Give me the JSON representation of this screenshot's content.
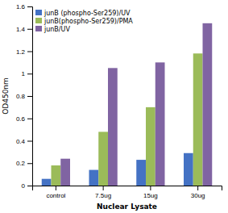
{
  "chart_data": {
    "type": "bar",
    "categories": [
      "control",
      "7.5ug",
      "15ug",
      "30ug"
    ],
    "series": [
      {
        "name": "junB (phospho-Ser259)/UV",
        "color": "#4472C4",
        "values": [
          0.06,
          0.14,
          0.23,
          0.29
        ]
      },
      {
        "name": "junB(phospho-Ser259)/PMA",
        "color": "#9BBB59",
        "values": [
          0.18,
          0.48,
          0.7,
          1.18
        ]
      },
      {
        "name": "junB/UV",
        "color": "#8064A2",
        "values": [
          0.24,
          1.05,
          1.1,
          1.45
        ]
      }
    ],
    "xlabel": "Nuclear Lysate",
    "ylabel": "OD450nm",
    "ylim": [
      0,
      1.6
    ],
    "yticks": [
      0,
      0.2,
      0.4,
      0.6,
      0.8,
      1,
      1.2,
      1.4,
      1.6
    ],
    "grid": false,
    "legend": "upper-left"
  }
}
